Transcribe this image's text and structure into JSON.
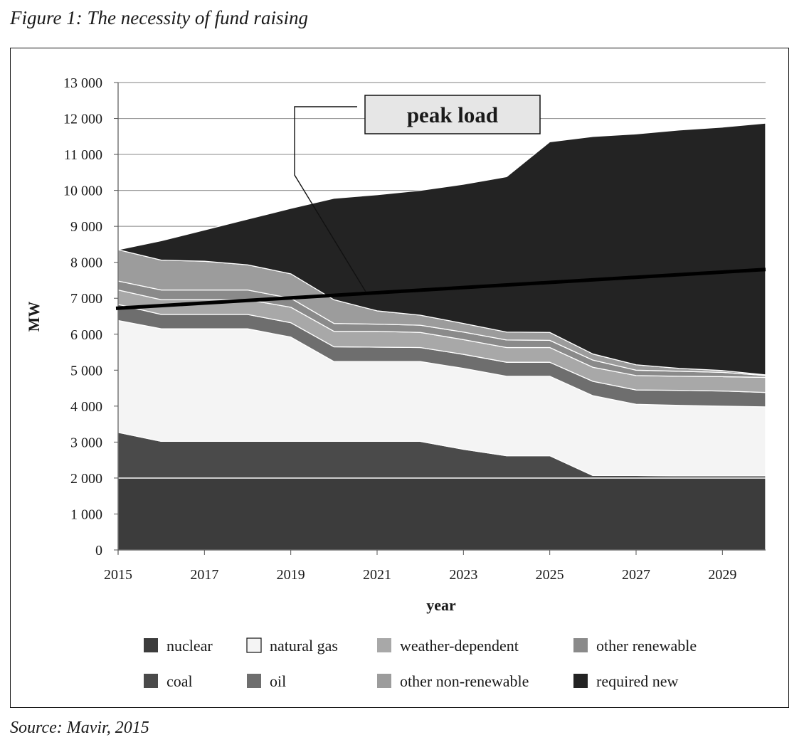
{
  "figure": {
    "title": "Figure 1: The necessity of fund raising",
    "source": "Source: Mavir, 2015"
  },
  "chart_data": {
    "type": "area",
    "stacked": true,
    "title": "Figure 1: The necessity of fund raising",
    "xlabel": "year",
    "ylabel": "MW",
    "xlim": [
      2015,
      2030
    ],
    "ylim": [
      0,
      13000
    ],
    "grid": true,
    "x": [
      2015,
      2016,
      2017,
      2018,
      2019,
      2020,
      2021,
      2022,
      2023,
      2024,
      2025,
      2026,
      2027,
      2028,
      2029,
      2030
    ],
    "x_tick_labels": [
      "2015",
      "2017",
      "2019",
      "2021",
      "2023",
      "2025",
      "2027",
      "2029"
    ],
    "y_tick_labels": [
      "0",
      "1 000",
      "2 000",
      "3 000",
      "4 000",
      "5 000",
      "6 000",
      "7 000",
      "8 000",
      "9 000",
      "10 000",
      "11 000",
      "12 000",
      "13 000"
    ],
    "y_ticks": [
      0,
      1000,
      2000,
      3000,
      4000,
      5000,
      6000,
      7000,
      8000,
      9000,
      10000,
      11000,
      12000,
      13000
    ],
    "series": [
      {
        "name": "nuclear",
        "color": "#3c3c3c",
        "values": [
          2000,
          2000,
          2000,
          2000,
          2000,
          2000,
          2000,
          2000,
          2000,
          2000,
          2000,
          2000,
          2000,
          2000,
          2000,
          2000
        ]
      },
      {
        "name": "coal",
        "color": "#4a4a4a",
        "values": [
          1270,
          1020,
          1020,
          1020,
          1020,
          1020,
          1020,
          1020,
          800,
          620,
          620,
          70,
          70,
          60,
          60,
          60
        ]
      },
      {
        "name": "natural gas",
        "color": "#f4f4f4",
        "values": [
          3110,
          3130,
          3130,
          3130,
          2900,
          2220,
          2220,
          2220,
          2250,
          2210,
          2210,
          2220,
          1980,
          1960,
          1940,
          1920
        ]
      },
      {
        "name": "oil",
        "color": "#6e6e6e",
        "values": [
          450,
          400,
          400,
          400,
          400,
          410,
          400,
          390,
          390,
          390,
          390,
          400,
          400,
          420,
          420,
          400
        ]
      },
      {
        "name": "weather-dependent",
        "color": "#a8a8a8",
        "values": [
          400,
          410,
          410,
          410,
          430,
          430,
          440,
          420,
          410,
          410,
          410,
          390,
          400,
          390,
          400,
          420
        ]
      },
      {
        "name": "other renewable",
        "color": "#8a8a8a",
        "values": [
          250,
          270,
          270,
          270,
          250,
          220,
          200,
          200,
          210,
          210,
          200,
          200,
          150,
          140,
          120,
          50
        ]
      },
      {
        "name": "other non-renewable",
        "color": "#9c9c9c",
        "values": [
          870,
          830,
          800,
          700,
          680,
          660,
          370,
          280,
          240,
          220,
          220,
          170,
          150,
          80,
          50,
          20
        ]
      },
      {
        "name": "required new",
        "color": "#232323",
        "values": [
          0,
          540,
          870,
          1270,
          1820,
          2820,
          3230,
          3470,
          3870,
          4320,
          5300,
          6050,
          6420,
          6630,
          6770,
          7000
        ]
      }
    ],
    "peak_load": {
      "name": "peak load",
      "values_at": {
        "2015": 6720,
        "2030": 7800
      }
    },
    "annotations": [
      {
        "text": "peak load",
        "target": "peak load line"
      }
    ],
    "legend": {
      "placement": "bottom",
      "entries": [
        "nuclear",
        "natural gas",
        "weather-dependent",
        "other renewable",
        "coal",
        "oil",
        "other non-renewable",
        "required new"
      ]
    }
  }
}
